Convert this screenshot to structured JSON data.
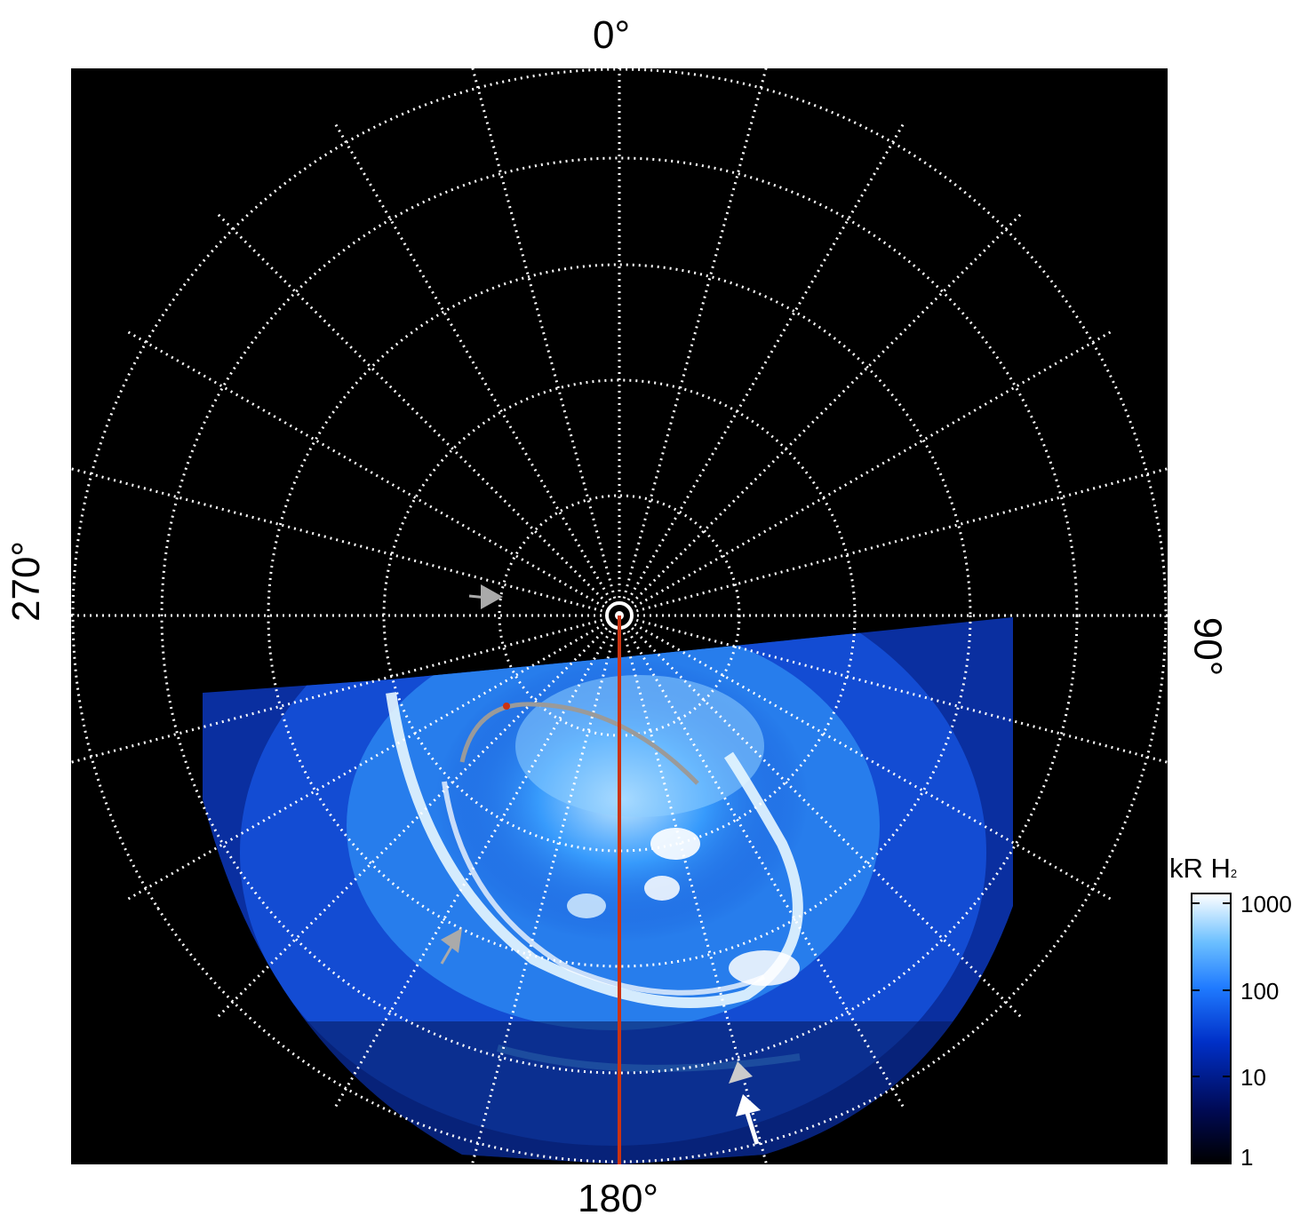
{
  "figure": {
    "type": "polar auroral image",
    "background_color": "#000000",
    "grid_color": "#ffffff",
    "grid_style": "dotted",
    "meridian_line_color": "#cc3311",
    "trace_color": "#999999",
    "aurora_colormap": [
      "#000000",
      "#001060",
      "#0040ff",
      "#2aa0ff",
      "#a8dcff",
      "#ffffff"
    ]
  },
  "labels": {
    "top": "0°",
    "bottom": "180°",
    "left": "270°",
    "right": "90°"
  },
  "colorbar": {
    "title_main": "kR H",
    "title_sub": "2",
    "ticks": [
      "1000",
      "100",
      "10",
      "1"
    ],
    "scale": "log",
    "range": [
      1,
      1000
    ]
  },
  "arrows": [
    {
      "name": "gray-arrow-upper-left",
      "color": "#aaaaaa"
    },
    {
      "name": "gray-arrow-lower-left",
      "color": "#aaaaaa"
    },
    {
      "name": "gray-arrow-bottom-right",
      "color": "#cccccc"
    },
    {
      "name": "white-arrow-bottom-right",
      "color": "#ffffff"
    }
  ]
}
